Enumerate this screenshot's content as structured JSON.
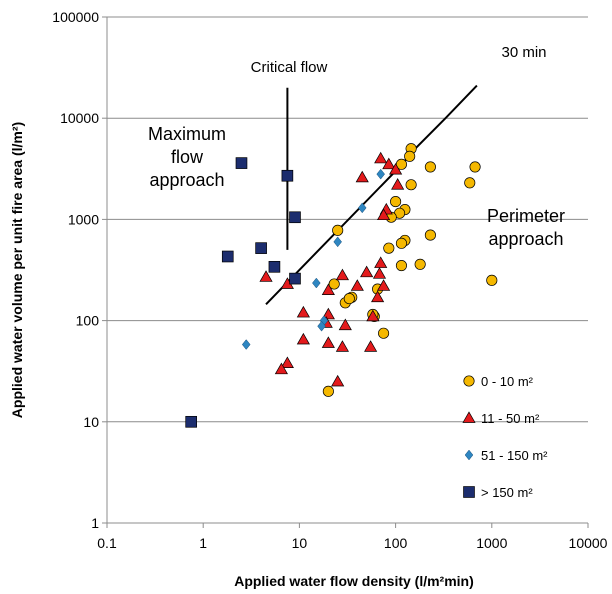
{
  "chart_data": {
    "type": "scatter",
    "xscale": "log",
    "yscale": "log",
    "xlim": [
      0.1,
      10000
    ],
    "ylim": [
      1,
      100000
    ],
    "grid": "horizontal",
    "legend_placement": "bottom-right",
    "xlabel": "Applied water flow density (l/m²min)",
    "ylabel": "Applied water volume per unit fire area (l/m²)",
    "x_ticks": [
      "0.1",
      "1",
      "10",
      "100",
      "1000",
      "10000"
    ],
    "y_ticks": [
      "1",
      "10",
      "100",
      "1000",
      "10000",
      "100000"
    ],
    "series": [
      {
        "name": "0 - 10 m²",
        "marker": "circle",
        "color": "#f5b800",
        "points": [
          [
            145,
            5000
          ],
          [
            115,
            3500
          ],
          [
            140,
            4200
          ],
          [
            670,
            3300
          ],
          [
            230,
            3300
          ],
          [
            590,
            2300
          ],
          [
            145,
            2200
          ],
          [
            125,
            1250
          ],
          [
            100,
            1500
          ],
          [
            110,
            1150
          ],
          [
            90,
            1050
          ],
          [
            85,
            520
          ],
          [
            125,
            620
          ],
          [
            115,
            580
          ],
          [
            180,
            360
          ],
          [
            115,
            350
          ],
          [
            230,
            700
          ],
          [
            1000,
            250
          ],
          [
            25,
            780
          ],
          [
            35,
            170
          ],
          [
            30,
            150
          ],
          [
            33,
            165
          ],
          [
            23,
            230
          ],
          [
            65,
            205
          ],
          [
            60,
            110
          ],
          [
            58,
            115
          ],
          [
            75,
            75
          ],
          [
            20,
            20
          ]
        ]
      },
      {
        "name": "11 - 50 m²",
        "marker": "triangle",
        "color": "#e31a1c",
        "points": [
          [
            70,
            4000
          ],
          [
            85,
            3500
          ],
          [
            100,
            3100
          ],
          [
            105,
            2200
          ],
          [
            45,
            2600
          ],
          [
            80,
            1250
          ],
          [
            75,
            1100
          ],
          [
            7.5,
            230
          ],
          [
            4.5,
            270
          ],
          [
            20,
            200
          ],
          [
            28,
            280
          ],
          [
            40,
            220
          ],
          [
            50,
            300
          ],
          [
            70,
            370
          ],
          [
            68,
            290
          ],
          [
            65,
            170
          ],
          [
            75,
            220
          ],
          [
            11,
            120
          ],
          [
            20,
            115
          ],
          [
            19,
            95
          ],
          [
            30,
            90
          ],
          [
            11,
            65
          ],
          [
            20,
            60
          ],
          [
            28,
            55
          ],
          [
            55,
            55
          ],
          [
            7.5,
            38
          ],
          [
            6.5,
            33
          ],
          [
            25,
            25
          ],
          [
            58,
            110
          ]
        ]
      },
      {
        "name": "51 - 150 m²",
        "marker": "diamond",
        "color": "#2e86c1",
        "points": [
          [
            70,
            2800
          ],
          [
            45,
            1300
          ],
          [
            25,
            600
          ],
          [
            15,
            235
          ],
          [
            18,
            100
          ],
          [
            17,
            88
          ],
          [
            2.8,
            58
          ]
        ]
      },
      {
        "name": "> 150 m²",
        "marker": "square",
        "color": "#1c2d6e",
        "points": [
          [
            2.5,
            3600
          ],
          [
            7.5,
            2700
          ],
          [
            9,
            1050
          ],
          [
            4,
            520
          ],
          [
            1.8,
            430
          ],
          [
            5.5,
            340
          ],
          [
            9,
            260
          ],
          [
            0.75,
            10
          ]
        ]
      }
    ],
    "lines": [
      {
        "label": "30 min",
        "points": [
          [
            4.5,
            145
          ],
          [
            110,
            3300
          ],
          [
            160,
            5000
          ],
          [
            330,
            10000
          ],
          [
            700,
            21000
          ]
        ]
      },
      {
        "label": "Critical flow",
        "points": [
          [
            7.5,
            500
          ],
          [
            7.5,
            20000
          ]
        ]
      }
    ],
    "annotations": [
      {
        "id": "max-flow",
        "lines": [
          "Maximum",
          "flow",
          "approach"
        ]
      },
      {
        "id": "perimeter",
        "lines": [
          "Perimeter",
          "approach"
        ]
      },
      {
        "id": "critical",
        "lines": [
          "Critical flow"
        ]
      },
      {
        "id": "thirty",
        "lines": [
          "30 min"
        ]
      }
    ]
  }
}
